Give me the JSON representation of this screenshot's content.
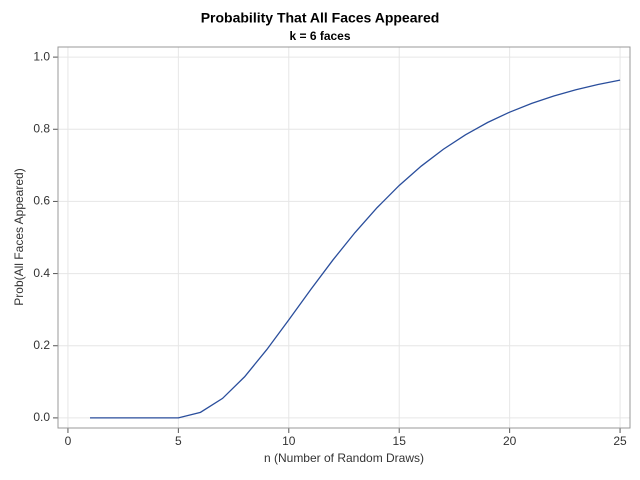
{
  "chart_data": {
    "type": "line",
    "title": "Probability That All Faces Appeared",
    "subtitle": "k = 6 faces",
    "x_label": "n (Number of Random Draws)",
    "y_label": "Prob(All Faces Appeared)",
    "x": [
      1,
      2,
      3,
      4,
      5,
      6,
      7,
      8,
      9,
      10,
      11,
      12,
      13,
      14,
      15,
      16,
      17,
      18,
      19,
      20,
      21,
      22,
      23,
      24,
      25
    ],
    "series": [
      {
        "color": "#2a4e9c",
        "values": [
          0,
          0,
          0,
          0,
          0,
          0.0154,
          0.054,
          0.114,
          0.189,
          0.2718,
          0.3562,
          0.4378,
          0.5138,
          0.5828,
          0.6442,
          0.698,
          0.7446,
          0.7846,
          0.8187,
          0.8474,
          0.8718,
          0.8923,
          0.9095,
          0.924,
          0.9361
        ]
      }
    ],
    "xlim": [
      -0.45,
      25.45
    ],
    "ylim": [
      -0.028,
      1.028
    ],
    "xticks": [
      0,
      5,
      10,
      15,
      20,
      25
    ],
    "yticks": [
      {
        "value": 0,
        "label": "0.0"
      },
      0.2,
      0.4,
      0.6,
      0.8,
      {
        "value": 1,
        "label": "1.0"
      }
    ],
    "grid": true
  }
}
